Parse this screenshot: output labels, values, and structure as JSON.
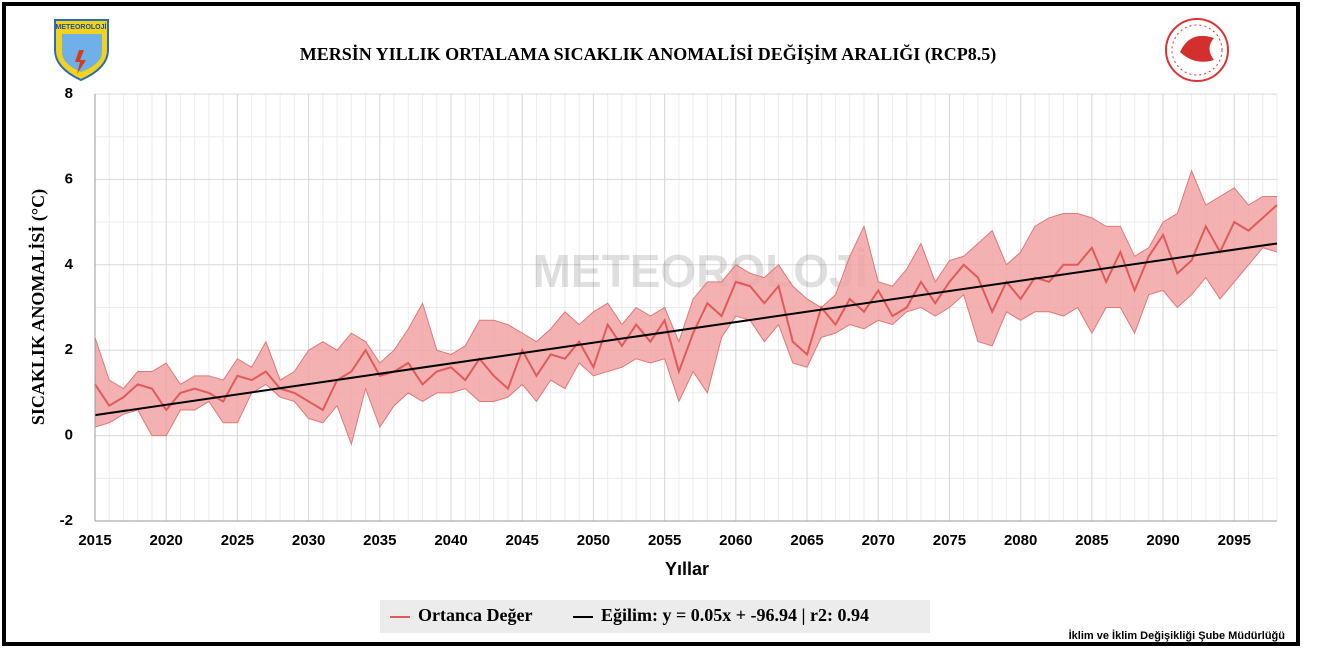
{
  "chart_data": {
    "type": "line",
    "title": "MERSİN YILLIK ORTALAMA SICAKLIK ANOMALİSİ DEĞİŞİM ARALIĞI (RCP8.5)",
    "logo_text": "METEOROLOJİ",
    "watermark": "METEOROLOJİ",
    "footer": "İklim ve İklim Değişikliği Şube Müdürlüğü",
    "x_label": "Yıllar",
    "y_label": "SICAKLIK ANOMALİSİ (°C)",
    "x": [
      2015,
      2016,
      2017,
      2018,
      2019,
      2020,
      2021,
      2022,
      2023,
      2024,
      2025,
      2026,
      2027,
      2028,
      2029,
      2030,
      2031,
      2032,
      2033,
      2034,
      2035,
      2036,
      2037,
      2038,
      2039,
      2040,
      2041,
      2042,
      2043,
      2044,
      2045,
      2046,
      2047,
      2048,
      2049,
      2050,
      2051,
      2052,
      2053,
      2054,
      2055,
      2056,
      2057,
      2058,
      2059,
      2060,
      2061,
      2062,
      2063,
      2064,
      2065,
      2066,
      2067,
      2068,
      2069,
      2070,
      2071,
      2072,
      2073,
      2074,
      2075,
      2076,
      2077,
      2078,
      2079,
      2080,
      2081,
      2082,
      2083,
      2084,
      2085,
      2086,
      2087,
      2088,
      2089,
      2090,
      2091,
      2092,
      2093,
      2094,
      2095,
      2096,
      2097,
      2098
    ],
    "xlim": [
      2015,
      2098
    ],
    "xticks": [
      2015,
      2020,
      2025,
      2030,
      2035,
      2040,
      2045,
      2050,
      2055,
      2060,
      2065,
      2070,
      2075,
      2080,
      2085,
      2090,
      2095
    ],
    "ylim": [
      -2,
      8
    ],
    "yticks": [
      -2,
      0,
      2,
      4,
      6,
      8
    ],
    "grid": true,
    "series": [
      {
        "name": "Ortanca Değer",
        "color": "#e05a5a",
        "values": [
          1.2,
          0.7,
          0.9,
          1.2,
          1.1,
          0.6,
          1.0,
          1.1,
          1.0,
          0.8,
          1.4,
          1.3,
          1.5,
          1.1,
          1.0,
          0.8,
          0.6,
          1.3,
          1.5,
          2.0,
          1.4,
          1.5,
          1.7,
          1.2,
          1.5,
          1.6,
          1.3,
          1.8,
          1.4,
          1.1,
          2.0,
          1.4,
          1.9,
          1.8,
          2.2,
          1.6,
          2.6,
          2.1,
          2.6,
          2.2,
          2.7,
          1.5,
          2.4,
          3.1,
          2.8,
          3.6,
          3.5,
          3.1,
          3.5,
          2.2,
          1.9,
          3.0,
          2.6,
          3.2,
          2.9,
          3.4,
          2.8,
          3.0,
          3.6,
          3.1,
          3.6,
          4.0,
          3.7,
          2.9,
          3.6,
          3.2,
          3.7,
          3.6,
          4.0,
          4.0,
          4.4,
          3.6,
          4.3,
          3.4,
          4.2,
          4.7,
          3.8,
          4.1,
          4.9,
          4.3,
          5.0,
          4.8,
          5.1,
          5.4
        ]
      }
    ],
    "band": {
      "color": "#f2a3a3",
      "edge": "#e07878",
      "low": [
        0.2,
        0.3,
        0.5,
        0.6,
        0.0,
        0.0,
        0.6,
        0.6,
        0.8,
        0.3,
        0.3,
        1.0,
        1.2,
        0.9,
        0.8,
        0.4,
        0.3,
        0.7,
        -0.2,
        1.1,
        0.2,
        0.7,
        1.0,
        0.8,
        1.0,
        1.0,
        1.1,
        0.8,
        0.8,
        0.9,
        1.2,
        0.8,
        1.3,
        1.1,
        1.7,
        1.4,
        1.5,
        1.6,
        1.8,
        1.7,
        1.8,
        0.8,
        1.5,
        1.0,
        2.3,
        2.8,
        2.7,
        2.2,
        2.6,
        1.7,
        1.6,
        2.3,
        2.4,
        2.6,
        2.5,
        2.7,
        2.6,
        2.9,
        3.0,
        2.8,
        3.0,
        3.3,
        2.2,
        2.1,
        2.9,
        2.7,
        2.9,
        2.9,
        2.8,
        3.0,
        2.4,
        3.0,
        3.0,
        2.4,
        3.3,
        3.4,
        3.0,
        3.3,
        3.7,
        3.2,
        3.6,
        4.0,
        4.4,
        4.3
      ],
      "high": [
        2.3,
        1.3,
        1.1,
        1.5,
        1.5,
        1.7,
        1.2,
        1.4,
        1.4,
        1.3,
        1.8,
        1.6,
        2.2,
        1.3,
        1.5,
        2.0,
        2.2,
        2.0,
        2.4,
        2.2,
        1.7,
        2.0,
        2.5,
        3.1,
        2.0,
        1.9,
        2.1,
        2.7,
        2.7,
        2.6,
        2.4,
        2.2,
        2.5,
        2.9,
        2.6,
        2.9,
        3.1,
        2.6,
        3.0,
        2.8,
        3.0,
        2.2,
        3.2,
        3.6,
        3.6,
        4.0,
        3.8,
        3.7,
        4.0,
        3.5,
        3.2,
        3.0,
        3.3,
        4.2,
        4.9,
        3.6,
        3.5,
        3.9,
        4.5,
        3.6,
        4.1,
        4.2,
        4.5,
        4.8,
        4.0,
        4.3,
        4.9,
        5.1,
        5.2,
        5.2,
        5.1,
        4.9,
        4.9,
        4.2,
        4.4,
        5.0,
        5.2,
        6.2,
        5.4,
        5.6,
        5.8,
        5.4,
        5.6,
        5.6
      ]
    },
    "trend": {
      "name": "Eğilim: y = 0.05x + -96.94 | r2: 0.94",
      "color": "#000000",
      "x": [
        2015,
        2098
      ],
      "values": [
        0.48,
        4.5
      ]
    }
  }
}
